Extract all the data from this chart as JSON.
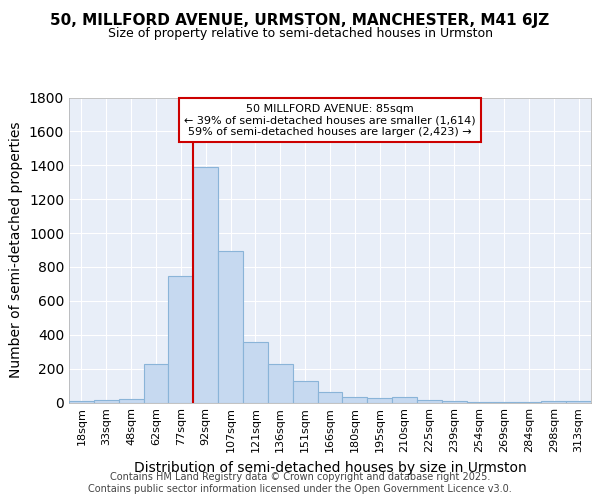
{
  "title": "50, MILLFORD AVENUE, URMSTON, MANCHESTER, M41 6JZ",
  "subtitle": "Size of property relative to semi-detached houses in Urmston",
  "xlabel": "Distribution of semi-detached houses by size in Urmston",
  "ylabel": "Number of semi-detached properties",
  "bar_color": "#c6d9f0",
  "bar_edge_color": "#8ab4d8",
  "plot_bg_color": "#e8eef8",
  "grid_color": "#ffffff",
  "annotation_line_color": "#cc0000",
  "annotation_box_color": "#cc0000",
  "bins": [
    "18sqm",
    "33sqm",
    "48sqm",
    "62sqm",
    "77sqm",
    "92sqm",
    "107sqm",
    "121sqm",
    "136sqm",
    "151sqm",
    "166sqm",
    "180sqm",
    "195sqm",
    "210sqm",
    "225sqm",
    "239sqm",
    "254sqm",
    "269sqm",
    "284sqm",
    "298sqm",
    "313sqm"
  ],
  "values": [
    10,
    15,
    20,
    228,
    748,
    1390,
    895,
    358,
    228,
    128,
    63,
    30,
    25,
    30,
    15,
    8,
    5,
    5,
    5,
    8,
    8
  ],
  "property_label": "50 MILLFORD AVENUE: 85sqm",
  "pct_smaller": 39,
  "pct_smaller_n": 1614,
  "pct_larger": 59,
  "pct_larger_n": 2423,
  "vline_bin_index": 4.5,
  "ylim": [
    0,
    1800
  ],
  "yticks": [
    0,
    200,
    400,
    600,
    800,
    1000,
    1200,
    1400,
    1600,
    1800
  ],
  "footer_line1": "Contains HM Land Registry data © Crown copyright and database right 2025.",
  "footer_line2": "Contains public sector information licensed under the Open Government Licence v3.0.",
  "title_fontsize": 11,
  "subtitle_fontsize": 9,
  "axis_label_fontsize": 10,
  "tick_fontsize": 8,
  "annot_fontsize": 8,
  "footer_fontsize": 7
}
